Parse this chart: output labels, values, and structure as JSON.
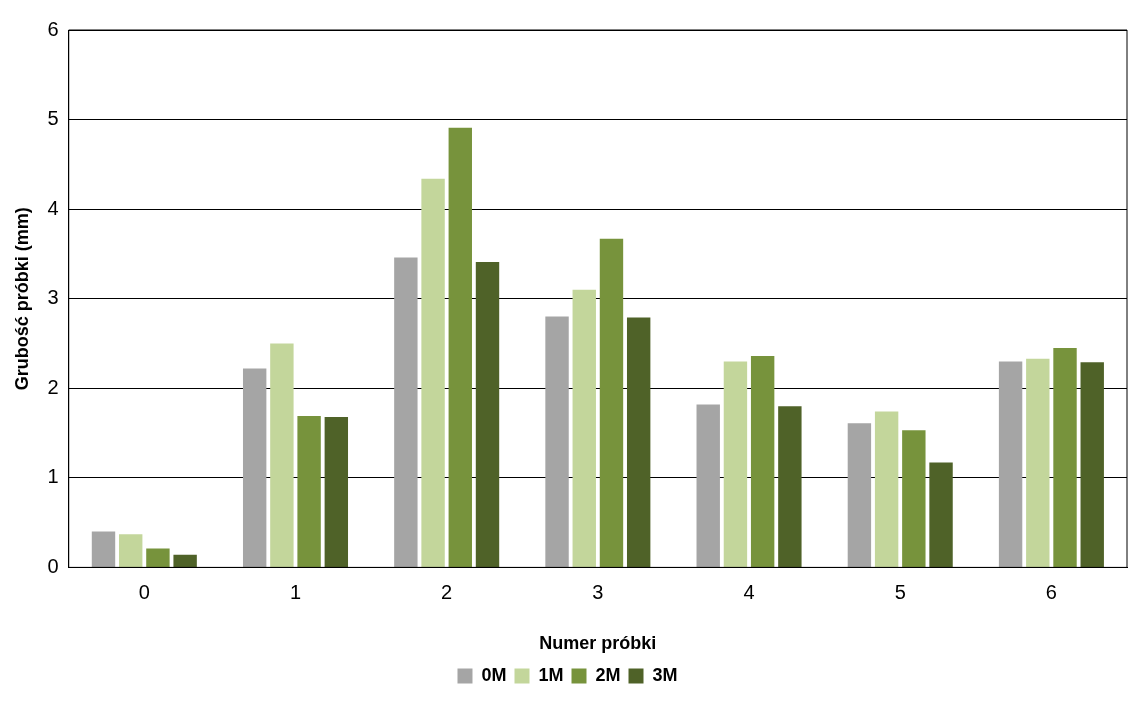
{
  "chart_data": {
    "type": "bar",
    "xlabel": "Numer próbki",
    "ylabel": "Grubość próbki (mm)",
    "categories": [
      "0",
      "1",
      "2",
      "3",
      "4",
      "5",
      "6"
    ],
    "series": [
      {
        "name": "0M",
        "color": "#a5a5a5",
        "values": [
          0.4,
          2.22,
          3.46,
          2.8,
          1.82,
          1.61,
          2.3
        ]
      },
      {
        "name": "1M",
        "color": "#c3d69b",
        "values": [
          0.37,
          2.5,
          4.34,
          3.1,
          2.3,
          1.74,
          2.33
        ]
      },
      {
        "name": "2M",
        "color": "#77933c",
        "values": [
          0.21,
          1.69,
          4.91,
          3.67,
          2.36,
          1.53,
          2.45
        ]
      },
      {
        "name": "3M",
        "color": "#4f6228",
        "values": [
          0.14,
          1.68,
          3.41,
          2.79,
          1.8,
          1.17,
          2.29
        ]
      }
    ],
    "ylim": [
      0,
      6
    ],
    "yticks": [
      0,
      1,
      2,
      3,
      4,
      5,
      6
    ],
    "grid": "y",
    "legend": "bottom"
  }
}
